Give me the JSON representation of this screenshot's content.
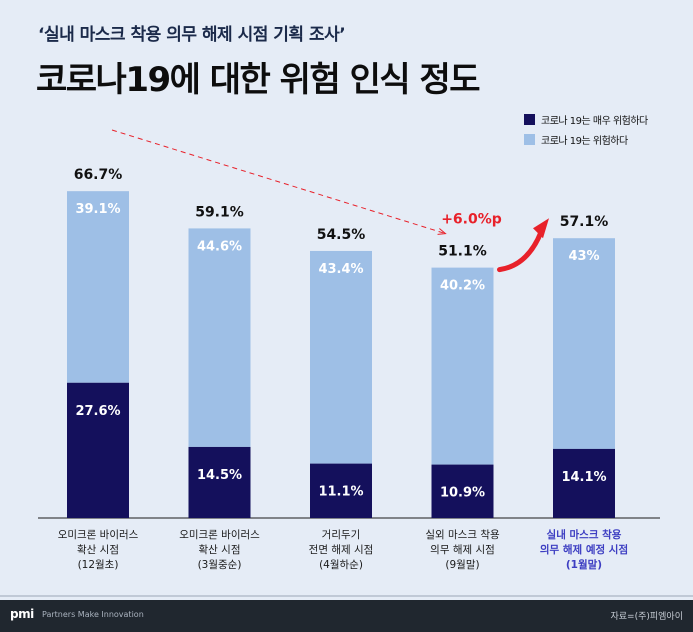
{
  "header": {
    "subtitle": "‘실내 마스크 착용 의무 해제 시점 기획 조사’",
    "title": "코로나19에 대한 위험 인식 정도"
  },
  "colors": {
    "dark": "#14105c",
    "light": "#9ebfe6",
    "highlight_label": "#3d3ec2",
    "arrow_red": "#e8212a"
  },
  "chart_data": {
    "type": "bar",
    "stacked": true,
    "categories": [
      [
        "오미크론 바이러스",
        "확산 시점",
        "(12월초)"
      ],
      [
        "오미크론 바이러스",
        "확산 시점",
        "(3월중순)"
      ],
      [
        "거리두기",
        "전면 해제 시점",
        "(4월하순)"
      ],
      [
        "실외 마스크 착용",
        "의무 해제 시점",
        "(9월말)"
      ],
      [
        "실내 마스크 착용",
        "의무 해제 예정 시점",
        "(1월말)"
      ]
    ],
    "series": [
      {
        "name": "코로나 19는 매우 위험하다",
        "values": [
          27.6,
          14.5,
          11.1,
          10.9,
          14.1
        ],
        "labels": [
          "27.6%",
          "14.5%",
          "11.1%",
          "10.9%",
          "14.1%"
        ]
      },
      {
        "name": "코로나 19는 위험하다",
        "values": [
          39.1,
          44.6,
          43.4,
          40.2,
          43
        ],
        "labels": [
          "39.1%",
          "44.6%",
          "43.4%",
          "40.2%",
          "43%"
        ]
      }
    ],
    "totals": [
      66.7,
      59.1,
      54.5,
      51.1,
      57.1
    ],
    "total_labels": [
      "66.7%",
      "59.1%",
      "54.5%",
      "51.1%",
      "57.1%"
    ],
    "highlight_index": 4,
    "annotation": "+6.0%p",
    "ylim": [
      0,
      80
    ],
    "legend_position": "top-right"
  },
  "legend": {
    "items": [
      {
        "label": "코로나 19는 매우 위험하다",
        "color": "#14105c"
      },
      {
        "label": "코로나 19는 위험하다",
        "color": "#9ebfe6"
      }
    ]
  },
  "footer": {
    "logo": "pmi",
    "tagline": "Partners Make Innovation",
    "source": "자료=(주)피엠아이"
  }
}
